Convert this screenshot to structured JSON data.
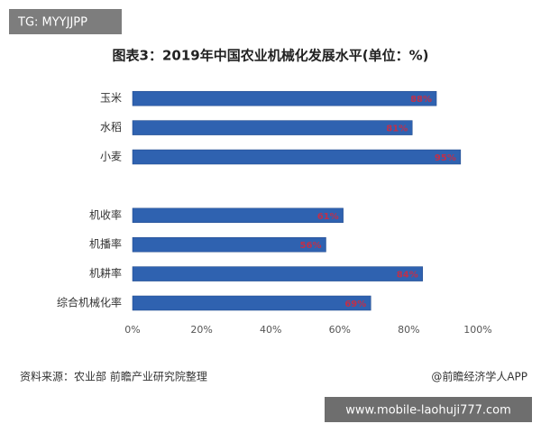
{
  "chart_data": {
    "type": "bar",
    "orientation": "horizontal",
    "title": "图表3：2019年中国农业机械化发展水平(单位：%)",
    "categories": [
      "玉米",
      "水稻",
      "小麦",
      null,
      "机收率",
      "机播率",
      "机耕率",
      "综合机械化率"
    ],
    "values": [
      88,
      81,
      95,
      null,
      61,
      56,
      84,
      69
    ],
    "value_labels": [
      "88%",
      "81%",
      "95%",
      null,
      "61%",
      "56%",
      "84%",
      "69%"
    ],
    "color": "#2f62b0",
    "value_label_color": "#c0304a",
    "xlim": [
      0,
      100
    ],
    "xticks": [
      {
        "value": 0,
        "label": "0%"
      },
      {
        "value": 20,
        "label": "20%"
      },
      {
        "value": 40,
        "label": "40%"
      },
      {
        "value": 60,
        "label": "60%"
      },
      {
        "value": 80,
        "label": "80%"
      },
      {
        "value": 100,
        "label": "100%"
      }
    ],
    "grid": false,
    "source": "资料来源：农业部 前瞻产业研究院整理",
    "credit": "@前瞻经济学人APP"
  },
  "overlays": {
    "top_left": "TG: MYYJJPP",
    "bottom_right": "www.mobile-laohuji777.com"
  }
}
